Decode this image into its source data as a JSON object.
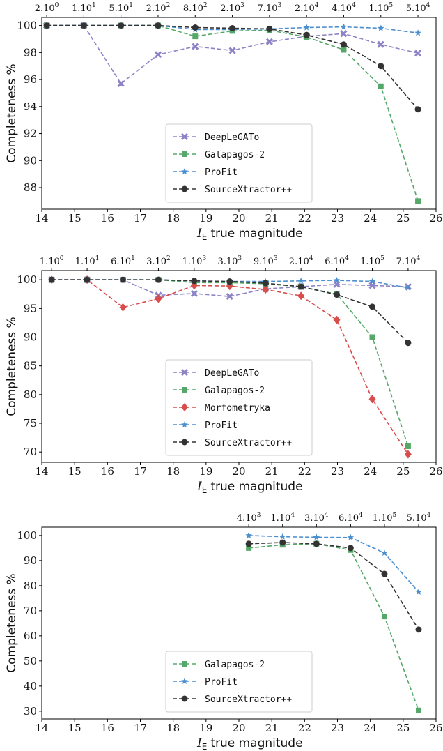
{
  "chart_data": [
    {
      "type": "line",
      "ylabel": "Completeness %",
      "xlabel": [
        "I",
        "E",
        "true magnitude"
      ],
      "top_labels": [
        [
          "2.10",
          "0"
        ],
        [
          "1.10",
          "1"
        ],
        [
          "5.10",
          "1"
        ],
        [
          "2.10",
          "2"
        ],
        [
          "8.10",
          "2"
        ],
        [
          "2.10",
          "3"
        ],
        [
          "7.10",
          "3"
        ],
        [
          "2.10",
          "4"
        ],
        [
          "4.10",
          "4"
        ],
        [
          "1.10",
          "5"
        ],
        [
          "5.10",
          "4"
        ]
      ],
      "x": [
        14.15,
        15.28,
        16.41,
        17.54,
        18.67,
        19.8,
        20.93,
        22.06,
        23.19,
        24.32,
        25.45
      ],
      "xlim": [
        14,
        26
      ],
      "xticks": [
        14,
        15,
        16,
        17,
        18,
        19,
        20,
        21,
        22,
        23,
        24,
        25,
        26
      ],
      "ylim": [
        86.4,
        100.6
      ],
      "yticks": [
        88,
        90,
        92,
        94,
        96,
        98,
        100
      ],
      "legend": "lower center",
      "series": [
        {
          "name": "DeepLeGATo",
          "color": "#8c84c6",
          "marker": "x",
          "values": [
            100,
            100,
            95.7,
            97.85,
            98.45,
            98.15,
            98.8,
            99.2,
            99.4,
            98.6,
            97.95
          ]
        },
        {
          "name": "Galapagos-2",
          "color": "#55a868",
          "marker": "s",
          "values": [
            100,
            100,
            100,
            100,
            99.2,
            99.6,
            99.65,
            99.15,
            98.2,
            95.5,
            87.0
          ]
        },
        {
          "name": "ProFit",
          "color": "#4c8fcf",
          "marker": "*",
          "values": [
            100,
            100,
            100,
            100,
            99.7,
            99.7,
            99.75,
            99.85,
            99.9,
            99.8,
            99.45
          ]
        },
        {
          "name": "SourceXtractor++",
          "color": "#333333",
          "marker": "o",
          "values": [
            100,
            100,
            100,
            100,
            99.85,
            99.8,
            99.75,
            99.3,
            98.6,
            97.0,
            93.8
          ]
        }
      ]
    },
    {
      "type": "line",
      "ylabel": "Completeness %",
      "xlabel": [
        "I",
        "E",
        "true magnitude"
      ],
      "top_labels": [
        [
          "1.10",
          "0"
        ],
        [
          "1.10",
          "1"
        ],
        [
          "6.10",
          "1"
        ],
        [
          "3.10",
          "2"
        ],
        [
          "1.10",
          "3"
        ],
        [
          "3.10",
          "3"
        ],
        [
          "9.10",
          "3"
        ],
        [
          "2.10",
          "4"
        ],
        [
          "6.10",
          "4"
        ],
        [
          "1.10",
          "5"
        ],
        [
          "7.10",
          "4"
        ]
      ],
      "x": [
        14.3,
        15.38,
        16.47,
        17.55,
        18.64,
        19.72,
        20.81,
        21.89,
        22.98,
        24.06,
        25.15
      ],
      "xlim": [
        14,
        26
      ],
      "xticks": [
        14,
        15,
        16,
        17,
        18,
        19,
        20,
        21,
        22,
        23,
        24,
        25,
        26
      ],
      "ylim": [
        68.2,
        101.6
      ],
      "yticks": [
        70,
        75,
        80,
        85,
        90,
        95,
        100
      ],
      "legend": "lower center",
      "series": [
        {
          "name": "DeepLeGATo",
          "color": "#8c84c6",
          "marker": "x",
          "values": [
            100,
            100,
            100,
            97.3,
            97.6,
            97.1,
            98.4,
            98.8,
            99.2,
            99.0,
            98.8
          ]
        },
        {
          "name": "Galapagos-2",
          "color": "#55a868",
          "marker": "s",
          "values": [
            100,
            100,
            100,
            100,
            99.5,
            99.5,
            99.3,
            98.8,
            97.5,
            90.0,
            71.0
          ]
        },
        {
          "name": "Morfometryka",
          "color": "#d94c4c",
          "marker": "D",
          "values": [
            100,
            100,
            95.2,
            96.7,
            99.0,
            98.9,
            98.3,
            97.2,
            93.0,
            79.2,
            69.6
          ]
        },
        {
          "name": "ProFit",
          "color": "#4c8fcf",
          "marker": "*",
          "values": [
            100,
            100,
            100,
            100,
            99.8,
            99.7,
            99.7,
            99.8,
            99.9,
            99.7,
            98.6
          ]
        },
        {
          "name": "SourceXtractor++",
          "color": "#333333",
          "marker": "o",
          "values": [
            100,
            100,
            100,
            100,
            99.8,
            99.7,
            99.4,
            98.8,
            97.4,
            95.3,
            89.0
          ]
        }
      ]
    },
    {
      "type": "line",
      "ylabel": "Completeness %",
      "xlabel": [
        "I",
        "E",
        "true magnitude"
      ],
      "top_labels": [
        [
          "4.10",
          "3"
        ],
        [
          "1.10",
          "4"
        ],
        [
          "3.10",
          "4"
        ],
        [
          "6.10",
          "4"
        ],
        [
          "1.10",
          "5"
        ],
        [
          "5.10",
          "4"
        ]
      ],
      "x": [
        20.3,
        21.33,
        22.36,
        23.4,
        24.43,
        25.47
      ],
      "xlim": [
        14,
        26
      ],
      "xticks": [
        14,
        15,
        16,
        17,
        18,
        19,
        20,
        21,
        22,
        23,
        24,
        25,
        26
      ],
      "ylim": [
        26.9,
        103.3
      ],
      "yticks": [
        30,
        40,
        50,
        60,
        70,
        80,
        90,
        100
      ],
      "legend": "lower center",
      "series": [
        {
          "name": "Galapagos-2",
          "color": "#55a868",
          "marker": "s",
          "values": [
            95.0,
            96.3,
            96.7,
            94.2,
            67.7,
            30.3
          ]
        },
        {
          "name": "ProFit",
          "color": "#4c8fcf",
          "marker": "*",
          "values": [
            100,
            99.5,
            99.3,
            99.2,
            93.0,
            77.5
          ]
        },
        {
          "name": "SourceXtractor++",
          "color": "#333333",
          "marker": "o",
          "values": [
            96.7,
            97.2,
            96.7,
            95.0,
            84.7,
            62.5
          ]
        }
      ]
    }
  ]
}
